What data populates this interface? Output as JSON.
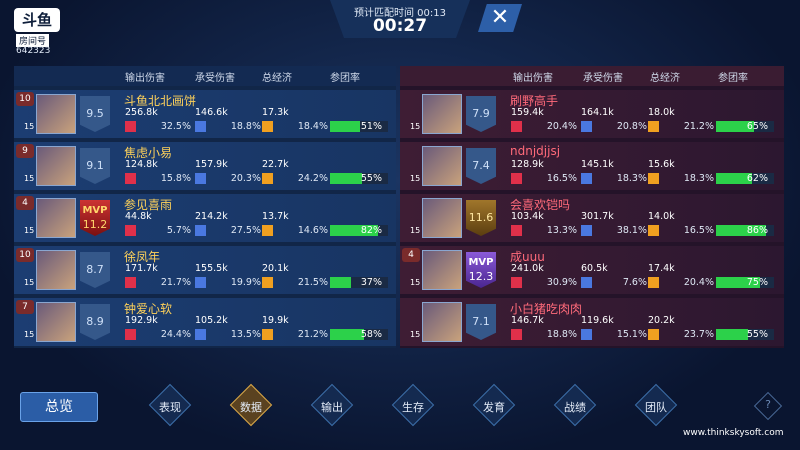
{
  "header": {
    "logo": "斗鱼",
    "room_label": "房间号",
    "room_id": "642323",
    "match_time": "预计匹配时间 00:13",
    "timer": "00:27"
  },
  "columns": [
    "输出伤害",
    "承受伤害",
    "总经济",
    "参团率"
  ],
  "blue_team": {
    "players": [
      {
        "name": "斗鱼北北画饼",
        "score": "9.5",
        "badge_level": "10",
        "hero_level": "15",
        "damage_dealt": "256.8k",
        "damage_dealt_pct": "32.5%",
        "damage_taken": "146.6k",
        "damage_taken_pct": "18.8%",
        "gold": "17.3k",
        "gold_pct": "18.4%",
        "participation": "51%"
      },
      {
        "name": "焦虑小易",
        "score": "9.1",
        "badge_level": "9",
        "hero_level": "15",
        "damage_dealt": "124.8k",
        "damage_dealt_pct": "15.8%",
        "damage_taken": "157.9k",
        "damage_taken_pct": "20.3%",
        "gold": "22.7k",
        "gold_pct": "24.2%",
        "participation": "55%"
      },
      {
        "name": "参见喜雨",
        "score": "11.2",
        "mvp": "MVP",
        "badge_level": "4",
        "hero_level": "15",
        "damage_dealt": "44.8k",
        "damage_dealt_pct": "5.7%",
        "damage_taken": "214.2k",
        "damage_taken_pct": "27.5%",
        "gold": "13.7k",
        "gold_pct": "14.6%",
        "participation": "82%"
      },
      {
        "name": "徐凤年",
        "score": "8.7",
        "badge_level": "10",
        "hero_level": "15",
        "damage_dealt": "171.7k",
        "damage_dealt_pct": "21.7%",
        "damage_taken": "155.5k",
        "damage_taken_pct": "19.9%",
        "gold": "20.1k",
        "gold_pct": "21.5%",
        "participation": "37%"
      },
      {
        "name": "钟爱心软",
        "score": "8.9",
        "badge_level": "7",
        "hero_level": "15",
        "damage_dealt": "192.9k",
        "damage_dealt_pct": "24.4%",
        "damage_taken": "105.2k",
        "damage_taken_pct": "13.5%",
        "gold": "19.9k",
        "gold_pct": "21.2%",
        "participation": "58%"
      }
    ]
  },
  "red_team": {
    "players": [
      {
        "name": "刷野高手",
        "score": "7.9",
        "hero_level": "15",
        "damage_dealt": "159.4k",
        "damage_dealt_pct": "20.4%",
        "damage_taken": "164.1k",
        "damage_taken_pct": "20.8%",
        "gold": "18.0k",
        "gold_pct": "21.2%",
        "participation": "65%"
      },
      {
        "name": "ndnjdjjsj",
        "score": "7.4",
        "hero_level": "15",
        "damage_dealt": "128.9k",
        "damage_dealt_pct": "16.5%",
        "damage_taken": "145.1k",
        "damage_taken_pct": "18.3%",
        "gold": "15.6k",
        "gold_pct": "18.3%",
        "participation": "62%"
      },
      {
        "name": "会喜欢铠吗",
        "score": "11.6",
        "hero_level": "15",
        "damage_dealt": "103.4k",
        "damage_dealt_pct": "13.3%",
        "damage_taken": "301.7k",
        "damage_taken_pct": "38.1%",
        "gold": "14.0k",
        "gold_pct": "16.5%",
        "participation": "86%"
      },
      {
        "name": "成uuu",
        "score": "12.3",
        "mvp": "MVP",
        "badge_level": "4",
        "hero_level": "15",
        "damage_dealt": "241.0k",
        "damage_dealt_pct": "30.9%",
        "damage_taken": "60.5k",
        "damage_taken_pct": "7.6%",
        "gold": "17.4k",
        "gold_pct": "20.4%",
        "participation": "75%"
      },
      {
        "name": "小白猪吃肉肉",
        "score": "7.1",
        "hero_level": "15",
        "damage_dealt": "146.7k",
        "damage_dealt_pct": "18.8%",
        "damage_taken": "119.6k",
        "damage_taken_pct": "15.1%",
        "gold": "20.2k",
        "gold_pct": "23.7%",
        "participation": "55%"
      }
    ]
  },
  "nav": {
    "back": "总览",
    "tabs": [
      "表现",
      "数据",
      "输出",
      "生存",
      "发育",
      "战绩",
      "团队"
    ],
    "help": "?"
  },
  "watermark": "www.thinkskysoft.com"
}
